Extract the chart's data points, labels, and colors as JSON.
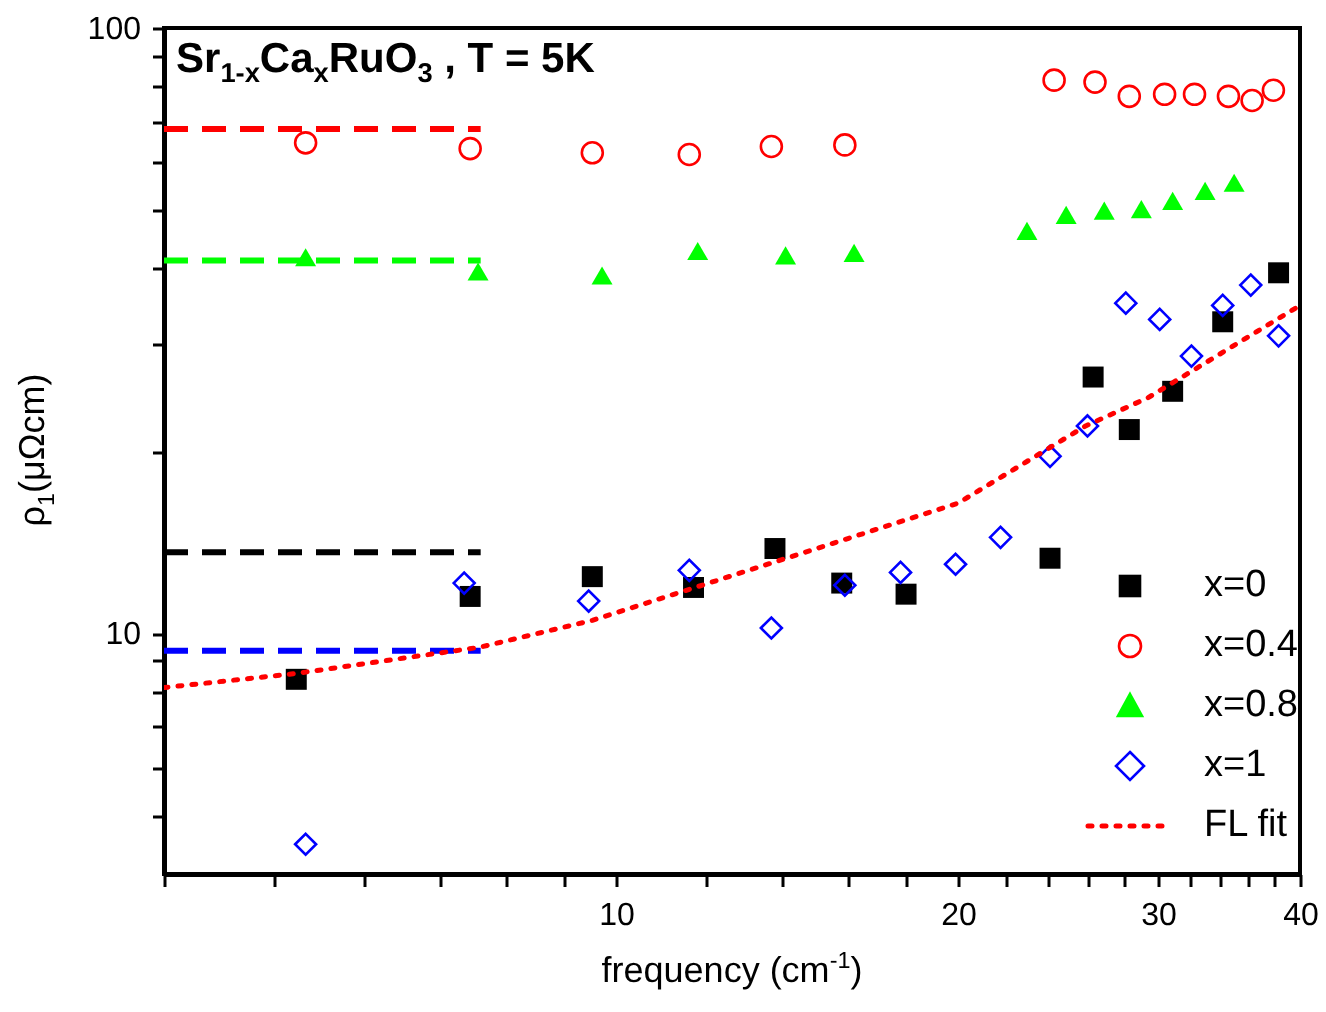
{
  "chart_data": {
    "type": "scatter",
    "xlabel": "frequency (cm$^{-1}$)",
    "ylabel": "ρ$_{1}$(μΩcm)",
    "annotations": [
      "Sr$_{1-x}$Ca$_{x}$RuO$_{3}$ , T = 5K"
    ],
    "log": "xy",
    "grid": false,
    "legend": "bottom right",
    "xlim": [
      4,
      40
    ],
    "ylim": [
      4,
      100
    ],
    "xticks": [
      {
        "value": 4,
        "label": null
      },
      {
        "value": 5,
        "label": null
      },
      {
        "value": 6,
        "label": null
      },
      {
        "value": 7,
        "label": null
      },
      {
        "value": 8,
        "label": null
      },
      {
        "value": 9,
        "label": null
      },
      10,
      {
        "value": 12,
        "label": null
      },
      {
        "value": 14,
        "label": null
      },
      {
        "value": 16,
        "label": null
      },
      {
        "value": 18,
        "label": null
      },
      20,
      {
        "value": 22,
        "label": null
      },
      {
        "value": 24,
        "label": null
      },
      {
        "value": 26,
        "label": null
      },
      {
        "value": 28,
        "label": null
      },
      30,
      {
        "value": 32,
        "label": null
      },
      {
        "value": 34,
        "label": null
      },
      {
        "value": 36,
        "label": null
      },
      {
        "value": 38,
        "label": null
      },
      40
    ],
    "yticks": [
      {
        "value": 5,
        "label": null
      },
      {
        "value": 6,
        "label": null
      },
      {
        "value": 7,
        "label": null
      },
      {
        "value": 8,
        "label": null
      },
      {
        "value": 9,
        "label": null
      },
      10,
      {
        "value": 20,
        "label": null
      },
      {
        "value": 30,
        "label": null
      },
      {
        "value": 40,
        "label": null
      },
      {
        "value": 50,
        "label": null
      },
      {
        "value": 60,
        "label": null
      },
      {
        "value": 70,
        "label": null
      },
      {
        "value": 80,
        "label": null
      },
      {
        "value": 90,
        "label": null
      },
      100
    ],
    "series": [
      {
        "type": "line",
        "color": "#ff0000",
        "line_style": "dashed",
        "x": [
          4,
          7.6
        ],
        "values": [
          68.1,
          68.1
        ]
      },
      {
        "type": "line",
        "color": "#00ff00",
        "line_style": "dashed",
        "x": [
          4,
          7.6
        ],
        "values": [
          41.3,
          41.3
        ]
      },
      {
        "type": "line",
        "color": "#000000",
        "line_style": "dashed",
        "x": [
          4,
          7.6
        ],
        "values": [
          13.6,
          13.6
        ]
      },
      {
        "type": "line",
        "color": "#0000ff",
        "line_style": "dashed",
        "x": [
          4,
          7.6
        ],
        "values": [
          9.35,
          9.35
        ]
      },
      {
        "name": "x=0",
        "marker": "square",
        "color": "#000000",
        "x": [
          5.23,
          7.44,
          9.53,
          11.7,
          13.8,
          15.8,
          18.0,
          24.1,
          26.3,
          28.3,
          30.9,
          34.2,
          38.3
        ],
        "values": [
          8.39,
          11.5,
          12.4,
          11.9,
          13.8,
          12.1,
          11.6,
          13.3,
          26.5,
          21.7,
          25.1,
          32.7,
          39.4
        ]
      },
      {
        "name": "x=0.4",
        "marker": "circle",
        "color": "#ff0000",
        "x": [
          5.33,
          7.44,
          9.53,
          11.6,
          13.7,
          15.9,
          24.3,
          26.4,
          28.3,
          30.4,
          32.3,
          34.6,
          36.3,
          37.9
        ],
        "values": [
          64.6,
          63.2,
          62.2,
          61.8,
          63.7,
          64.1,
          82.0,
          81.4,
          77.1,
          77.7,
          77.7,
          77.1,
          75.9,
          78.9
        ]
      },
      {
        "name": "x=0.8",
        "marker": "triangle",
        "color": "#00ff00",
        "x": [
          5.33,
          7.56,
          9.72,
          11.8,
          14.1,
          16.2,
          23.0,
          24.9,
          26.9,
          29.0,
          30.9,
          33.0,
          35.0
        ],
        "values": [
          41.8,
          39.6,
          39.0,
          42.8,
          42.1,
          42.5,
          46.2,
          49.1,
          49.9,
          50.2,
          51.8,
          53.8,
          55.5
        ]
      },
      {
        "name": "x=1",
        "marker": "diamond",
        "color": "#0000ff",
        "x": [
          5.33,
          7.35,
          9.46,
          11.6,
          13.7,
          15.9,
          17.8,
          19.9,
          21.8,
          24.1,
          26.0,
          28.1,
          30.1,
          32.1,
          34.2,
          36.2,
          38.3
        ],
        "values": [
          4.48,
          12.1,
          11.3,
          12.7,
          10.2,
          12.0,
          12.6,
          13.0,
          14.4,
          19.6,
          22.0,
          35.1,
          33.0,
          28.7,
          34.8,
          37.6,
          31.0
        ]
      },
      {
        "name": "FL fit",
        "type": "line",
        "color": "#ff0000",
        "line_style": "dotted",
        "x": [
          4,
          5.23,
          7.59,
          9.53,
          13.6,
          20.0,
          25.9,
          29.4,
          40
        ],
        "values": [
          8.13,
          8.58,
          9.48,
          10.5,
          13.0,
          16.4,
          22.0,
          24.5,
          34.8
        ]
      }
    ]
  }
}
